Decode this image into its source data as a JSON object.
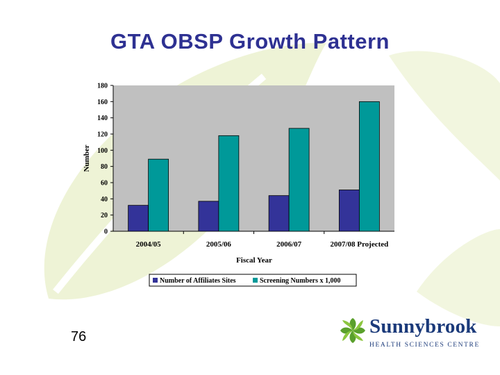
{
  "slide": {
    "title": "GTA OBSP Growth Pattern",
    "page_number": "76"
  },
  "logo": {
    "name": "Sunnybrook",
    "subtitle": "HEALTH SCIENCES CENTRE"
  },
  "colors": {
    "title": "#2e3192",
    "series_affiliates": "#333399",
    "series_screening": "#009999",
    "plot_bg": "#c0c0c0",
    "background_leaf": "#eef3d6"
  },
  "chart_data": {
    "type": "bar",
    "categories": [
      "2004/05",
      "2005/06",
      "2006/07",
      "2007/08 Projected"
    ],
    "series": [
      {
        "name": "Number of Affiliates Sites",
        "values": [
          32,
          37,
          44,
          51
        ],
        "color": "#333399"
      },
      {
        "name": "Screening Numbers x 1,000",
        "values": [
          89,
          118,
          127,
          160
        ],
        "color": "#009999"
      }
    ],
    "xlabel": "Fiscal Year",
    "ylabel": "Number",
    "ylim": [
      0,
      180
    ],
    "yticks": [
      "0",
      "20",
      "40",
      "60",
      "80",
      "100",
      "120",
      "140",
      "160",
      "180"
    ],
    "grid": false,
    "legend_position": "bottom"
  }
}
